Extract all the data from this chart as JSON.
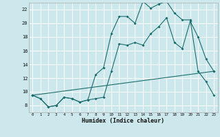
{
  "xlabel": "Humidex (Indice chaleur)",
  "xlim": [
    -0.5,
    23.5
  ],
  "ylim": [
    7,
    23
  ],
  "yticks": [
    8,
    10,
    12,
    14,
    16,
    18,
    20,
    22
  ],
  "xticks": [
    0,
    1,
    2,
    3,
    4,
    5,
    6,
    7,
    8,
    9,
    10,
    11,
    12,
    13,
    14,
    15,
    16,
    17,
    18,
    19,
    20,
    21,
    22,
    23
  ],
  "bg_color": "#cce8ec",
  "grid_color": "#ffffff",
  "line_color": "#1a6b6b",
  "line1_x": [
    0,
    1,
    2,
    3,
    4,
    5,
    6,
    7,
    8,
    9,
    10,
    11,
    12,
    13,
    14,
    15,
    16,
    17,
    18,
    19,
    20,
    21,
    22,
    23
  ],
  "line1_y": [
    9.5,
    9.0,
    7.8,
    8.0,
    9.2,
    9.0,
    8.5,
    8.8,
    9.0,
    9.2,
    13.0,
    17.0,
    16.8,
    17.2,
    16.8,
    18.5,
    19.5,
    20.8,
    17.2,
    16.3,
    20.3,
    18.0,
    14.8,
    13.0
  ],
  "line2_x": [
    0,
    1,
    2,
    3,
    4,
    5,
    6,
    7,
    8,
    9,
    10,
    11,
    12,
    13,
    14,
    15,
    16,
    17,
    18,
    19,
    20,
    21,
    22,
    23
  ],
  "line2_y": [
    9.5,
    9.0,
    7.8,
    8.0,
    9.2,
    9.0,
    8.5,
    8.8,
    12.5,
    13.5,
    18.5,
    21.0,
    21.0,
    20.0,
    23.2,
    22.2,
    22.8,
    23.2,
    21.5,
    20.5,
    20.5,
    13.0,
    11.5,
    9.5
  ],
  "line3_x": [
    0,
    23
  ],
  "line3_y": [
    9.5,
    13.0
  ]
}
